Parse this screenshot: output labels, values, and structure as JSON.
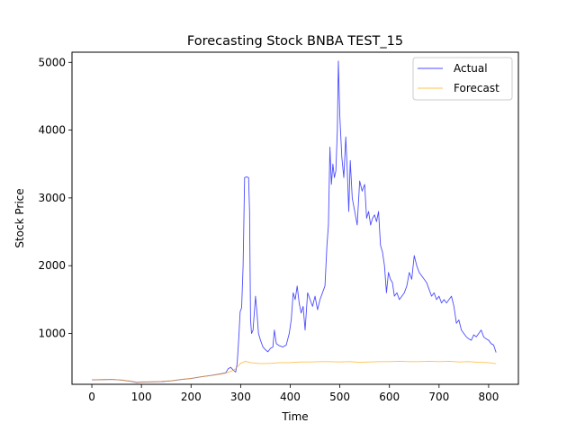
{
  "chart_data": {
    "type": "line",
    "title": "Forecasting Stock BNBA TEST_15",
    "xlabel": "Time",
    "ylabel": "Stock Price",
    "xlim": [
      -40,
      860
    ],
    "ylim": [
      250,
      5150
    ],
    "xticks": [
      0,
      100,
      200,
      300,
      400,
      500,
      600,
      700,
      800
    ],
    "yticks": [
      1000,
      2000,
      3000,
      4000,
      5000
    ],
    "grid": false,
    "legend_position": "top-right",
    "series": [
      {
        "name": "Actual",
        "color": "#0000ff",
        "points": [
          [
            0,
            315
          ],
          [
            20,
            318
          ],
          [
            40,
            322
          ],
          [
            60,
            312
          ],
          [
            80,
            292
          ],
          [
            90,
            278
          ],
          [
            100,
            282
          ],
          [
            120,
            285
          ],
          [
            140,
            290
          ],
          [
            160,
            300
          ],
          [
            180,
            320
          ],
          [
            200,
            335
          ],
          [
            220,
            360
          ],
          [
            240,
            380
          ],
          [
            260,
            405
          ],
          [
            270,
            420
          ],
          [
            275,
            480
          ],
          [
            280,
            500
          ],
          [
            285,
            460
          ],
          [
            290,
            430
          ],
          [
            293,
            560
          ],
          [
            296,
            900
          ],
          [
            299,
            1320
          ],
          [
            302,
            1380
          ],
          [
            305,
            2000
          ],
          [
            308,
            3300
          ],
          [
            312,
            3310
          ],
          [
            316,
            3300
          ],
          [
            318,
            2800
          ],
          [
            320,
            1200
          ],
          [
            322,
            1000
          ],
          [
            325,
            1050
          ],
          [
            328,
            1350
          ],
          [
            330,
            1550
          ],
          [
            333,
            1300
          ],
          [
            336,
            1000
          ],
          [
            340,
            900
          ],
          [
            345,
            800
          ],
          [
            350,
            760
          ],
          [
            355,
            730
          ],
          [
            360,
            780
          ],
          [
            365,
            800
          ],
          [
            368,
            1050
          ],
          [
            372,
            850
          ],
          [
            378,
            820
          ],
          [
            385,
            800
          ],
          [
            392,
            830
          ],
          [
            398,
            1000
          ],
          [
            402,
            1200
          ],
          [
            406,
            1600
          ],
          [
            410,
            1500
          ],
          [
            414,
            1700
          ],
          [
            418,
            1450
          ],
          [
            422,
            1300
          ],
          [
            426,
            1400
          ],
          [
            430,
            1050
          ],
          [
            435,
            1600
          ],
          [
            440,
            1500
          ],
          [
            445,
            1400
          ],
          [
            450,
            1550
          ],
          [
            455,
            1350
          ],
          [
            460,
            1500
          ],
          [
            465,
            1600
          ],
          [
            470,
            1700
          ],
          [
            474,
            2300
          ],
          [
            477,
            2600
          ],
          [
            480,
            3750
          ],
          [
            483,
            3200
          ],
          [
            486,
            3500
          ],
          [
            489,
            3300
          ],
          [
            492,
            3400
          ],
          [
            495,
            4000
          ],
          [
            497,
            5020
          ],
          [
            500,
            4200
          ],
          [
            504,
            3600
          ],
          [
            508,
            3300
          ],
          [
            512,
            3900
          ],
          [
            515,
            3400
          ],
          [
            518,
            2800
          ],
          [
            521,
            3550
          ],
          [
            525,
            3000
          ],
          [
            530,
            2800
          ],
          [
            535,
            2600
          ],
          [
            540,
            3250
          ],
          [
            545,
            3100
          ],
          [
            550,
            3200
          ],
          [
            554,
            2700
          ],
          [
            558,
            2800
          ],
          [
            562,
            2600
          ],
          [
            566,
            2700
          ],
          [
            570,
            2750
          ],
          [
            574,
            2650
          ],
          [
            578,
            2800
          ],
          [
            582,
            2300
          ],
          [
            586,
            2200
          ],
          [
            590,
            2000
          ],
          [
            594,
            1600
          ],
          [
            598,
            1900
          ],
          [
            602,
            1800
          ],
          [
            606,
            1750
          ],
          [
            610,
            1550
          ],
          [
            615,
            1600
          ],
          [
            620,
            1500
          ],
          [
            625,
            1550
          ],
          [
            630,
            1600
          ],
          [
            635,
            1700
          ],
          [
            640,
            1900
          ],
          [
            645,
            1800
          ],
          [
            650,
            2150
          ],
          [
            655,
            2000
          ],
          [
            660,
            1900
          ],
          [
            665,
            1850
          ],
          [
            670,
            1800
          ],
          [
            675,
            1750
          ],
          [
            680,
            1650
          ],
          [
            685,
            1550
          ],
          [
            690,
            1600
          ],
          [
            695,
            1500
          ],
          [
            700,
            1550
          ],
          [
            705,
            1450
          ],
          [
            710,
            1500
          ],
          [
            715,
            1450
          ],
          [
            720,
            1500
          ],
          [
            725,
            1550
          ],
          [
            730,
            1400
          ],
          [
            735,
            1150
          ],
          [
            740,
            1200
          ],
          [
            745,
            1050
          ],
          [
            750,
            1000
          ],
          [
            755,
            950
          ],
          [
            760,
            920
          ],
          [
            765,
            900
          ],
          [
            770,
            980
          ],
          [
            775,
            950
          ],
          [
            780,
            1000
          ],
          [
            785,
            1050
          ],
          [
            790,
            950
          ],
          [
            795,
            920
          ],
          [
            800,
            900
          ],
          [
            805,
            850
          ],
          [
            810,
            830
          ],
          [
            815,
            720
          ]
        ]
      },
      {
        "name": "Forecast",
        "color": "#ffa500",
        "points": [
          [
            0,
            318
          ],
          [
            20,
            318
          ],
          [
            40,
            322
          ],
          [
            60,
            314
          ],
          [
            80,
            296
          ],
          [
            90,
            282
          ],
          [
            100,
            285
          ],
          [
            120,
            287
          ],
          [
            140,
            292
          ],
          [
            160,
            302
          ],
          [
            180,
            322
          ],
          [
            200,
            337
          ],
          [
            220,
            360
          ],
          [
            240,
            378
          ],
          [
            260,
            400
          ],
          [
            270,
            415
          ],
          [
            280,
            440
          ],
          [
            290,
            480
          ],
          [
            300,
            560
          ],
          [
            310,
            590
          ],
          [
            320,
            570
          ],
          [
            340,
            555
          ],
          [
            360,
            560
          ],
          [
            380,
            570
          ],
          [
            400,
            570
          ],
          [
            420,
            580
          ],
          [
            440,
            580
          ],
          [
            460,
            585
          ],
          [
            480,
            585
          ],
          [
            500,
            580
          ],
          [
            520,
            585
          ],
          [
            540,
            575
          ],
          [
            560,
            580
          ],
          [
            580,
            585
          ],
          [
            600,
            585
          ],
          [
            620,
            590
          ],
          [
            640,
            585
          ],
          [
            660,
            585
          ],
          [
            680,
            590
          ],
          [
            700,
            585
          ],
          [
            720,
            590
          ],
          [
            740,
            580
          ],
          [
            760,
            585
          ],
          [
            780,
            575
          ],
          [
            800,
            570
          ],
          [
            815,
            555
          ]
        ]
      }
    ]
  }
}
